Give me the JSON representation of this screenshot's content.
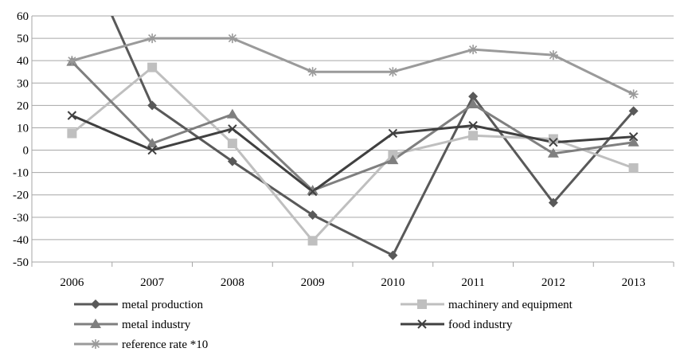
{
  "chart_data": {
    "type": "line",
    "title": "",
    "xlabel": "",
    "ylabel": "",
    "categories": [
      "2006",
      "2007",
      "2008",
      "2009",
      "2010",
      "2011",
      "2012",
      "2013"
    ],
    "ylim": [
      -50,
      60
    ],
    "yticks": [
      60,
      50,
      40,
      30,
      20,
      10,
      0,
      -10,
      -20,
      -30,
      -40,
      -50
    ],
    "grid": "horizontal",
    "legend_position": "bottom",
    "series": [
      {
        "name": "metal production",
        "values": [
          100,
          20,
          -5,
          -29,
          -47,
          24,
          -23.5,
          17.5
        ],
        "color": "#595959",
        "marker": "diamond"
      },
      {
        "name": "machinery and equipment",
        "values": [
          7.5,
          37,
          3,
          -40.5,
          -2,
          6.5,
          5,
          -8
        ],
        "color": "#bfbfbf",
        "marker": "square"
      },
      {
        "name": "metal industry",
        "values": [
          39.5,
          3,
          16,
          -18,
          -4.5,
          20.5,
          -1.5,
          3.5
        ],
        "color": "#7f7f7f",
        "marker": "triangle"
      },
      {
        "name": "food industry",
        "values": [
          15.5,
          0,
          9.5,
          -18.5,
          7.5,
          11,
          3.5,
          6
        ],
        "color": "#404040",
        "marker": "x"
      },
      {
        "name": "reference rate *10",
        "values": [
          40,
          50,
          50,
          35,
          35,
          45,
          42.5,
          25
        ],
        "color": "#9a9a9a",
        "marker": "star"
      }
    ]
  }
}
